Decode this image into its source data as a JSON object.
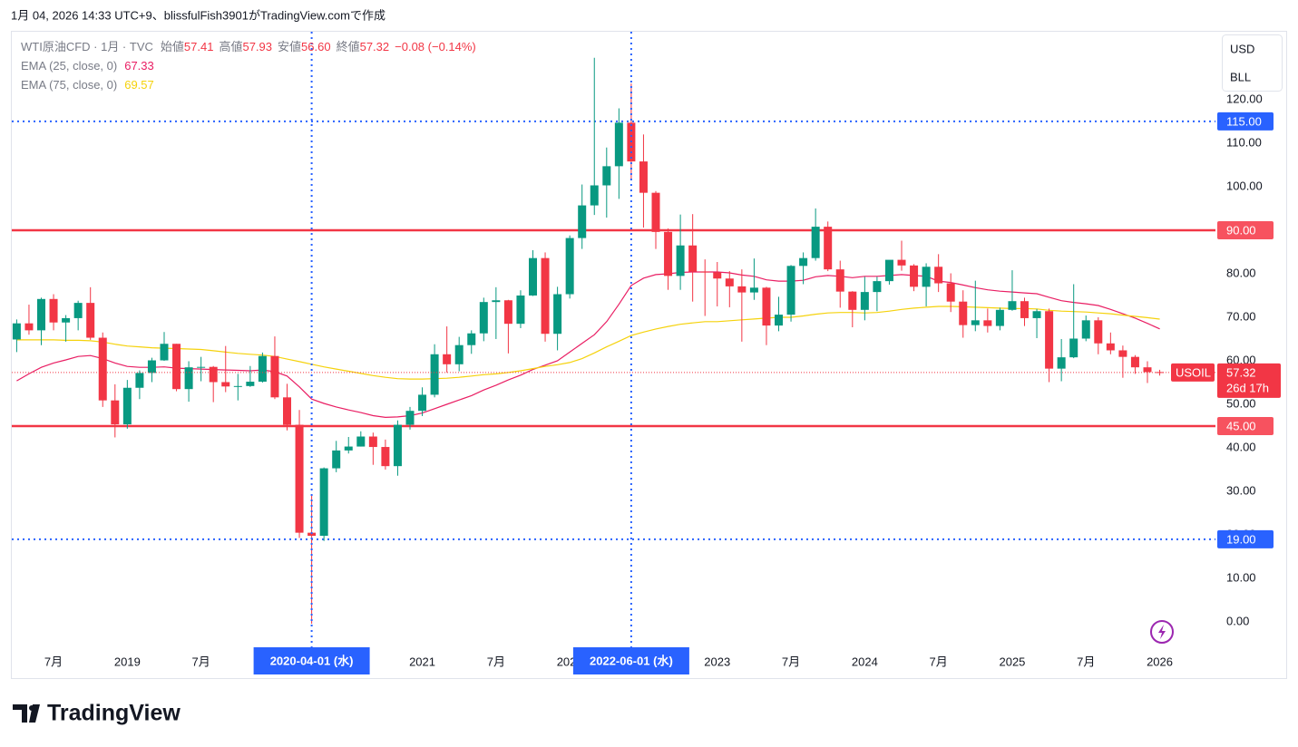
{
  "header": {
    "credit": "1月 04, 2026 14:33 UTC+9、blissfulFish3901がTradingView.comで作成"
  },
  "logo": {
    "text": "TradingView"
  },
  "chart_data": {
    "type": "candlestick",
    "legend": {
      "symbol": "WTI原油CFD · 1月 · TVC",
      "items": [
        {
          "name": "始値",
          "value": "57.41"
        },
        {
          "name": "高値",
          "value": "57.93"
        },
        {
          "name": "安値",
          "value": "56.60"
        },
        {
          "name": "終値",
          "value": "57.32"
        }
      ],
      "change": "−0.08 (−0.14%)"
    },
    "currency": [
      "USD",
      "BLL"
    ],
    "up_color": "#089981",
    "down_color": "#f23645",
    "categories": [
      null,
      null,
      null,
      "7月",
      null,
      null,
      null,
      null,
      null,
      "2019",
      null,
      null,
      null,
      null,
      null,
      "7月",
      null,
      null,
      null,
      null,
      null,
      null,
      null,
      null,
      null,
      null,
      null,
      null,
      null,
      null,
      null,
      null,
      null,
      "2021",
      null,
      null,
      null,
      null,
      null,
      "7月",
      null,
      null,
      null,
      null,
      null,
      "2022",
      null,
      null,
      null,
      null,
      null,
      null,
      null,
      null,
      null,
      null,
      null,
      "2023",
      null,
      null,
      null,
      null,
      null,
      "7月",
      null,
      null,
      null,
      null,
      null,
      "2024",
      null,
      null,
      null,
      null,
      null,
      "7月",
      null,
      null,
      null,
      null,
      null,
      "2025",
      null,
      null,
      null,
      null,
      null,
      "7月",
      null,
      null,
      null,
      null,
      null,
      "2026"
    ],
    "open": [
      64.9,
      68.6,
      67.0,
      74.2,
      68.8,
      69.8,
      73.3,
      65.3,
      50.9,
      45.4,
      53.8,
      57.2,
      60.1,
      63.9,
      53.5,
      58.5,
      58.6,
      55.1,
      54.1,
      54.2,
      55.2,
      61.1,
      51.6,
      45.3,
      20.5,
      19.8,
      35.3,
      39.4,
      40.3,
      42.6,
      40.2,
      35.8,
      45.3,
      48.5,
      52.2,
      61.5,
      59.2,
      63.6,
      66.3,
      73.5,
      73.9,
      68.5,
      75.0,
      83.6,
      66.2,
      75.3,
      88.2,
      95.7,
      100.3,
      104.7,
      114.7,
      105.8,
      98.6,
      89.6,
      79.5,
      86.5,
      80.5,
      80.3,
      78.9,
      77.1,
      75.7,
      76.8,
      68.1,
      70.6,
      81.8,
      83.6,
      90.8,
      81.0,
      75.9,
      71.7,
      75.8,
      78.3,
      83.2,
      81.9,
      77.0,
      81.6,
      77.8,
      73.6,
      68.2,
      69.3,
      68.0,
      71.7,
      73.7,
      69.8,
      71.4,
      58.2,
      60.8,
      65.1,
      69.3,
      64.0,
      62.4,
      60.9,
      58.5,
      57.41
    ],
    "high": [
      69.5,
      72.9,
      74.5,
      75.3,
      70.5,
      73.8,
      76.9,
      66.5,
      54.6,
      55.6,
      57.8,
      60.7,
      66.6,
      63.9,
      59.9,
      60.9,
      58.8,
      63.4,
      57.0,
      58.8,
      61.9,
      65.6,
      54.7,
      48.7,
      29.1,
      35.5,
      41.6,
      42.5,
      43.8,
      43.5,
      41.9,
      46.3,
      49.4,
      53.9,
      63.8,
      67.9,
      65.5,
      67.0,
      74.5,
      76.9,
      74.0,
      76.2,
      85.4,
      84.9,
      77.0,
      88.8,
      100.5,
      129.6,
      109.0,
      118.0,
      123.7,
      112.0,
      99.0,
      90.4,
      93.6,
      93.7,
      83.3,
      82.7,
      80.6,
      81.0,
      83.5,
      77.0,
      74.7,
      82.0,
      84.9,
      95.0,
      92.0,
      83.0,
      76.0,
      79.3,
      79.3,
      83.1,
      87.6,
      82.2,
      82.4,
      84.5,
      80.1,
      76.2,
      78.4,
      72.0,
      72.2,
      80.8,
      74.5,
      71.9,
      72.0,
      65.0,
      77.6,
      70.4,
      70.0,
      66.5,
      63.5,
      61.3,
      59.9,
      57.93
    ],
    "low": [
      62.0,
      66.0,
      63.6,
      67.0,
      64.4,
      67.0,
      64.8,
      49.4,
      42.4,
      44.4,
      51.2,
      55.1,
      60.0,
      53.0,
      50.6,
      55.3,
      50.5,
      52.8,
      50.9,
      54.0,
      55.0,
      51.2,
      44.0,
      19.3,
      -0.4,
      18.6,
      34.4,
      38.7,
      40.3,
      36.1,
      35.0,
      33.6,
      44.2,
      47.3,
      51.6,
      57.3,
      57.6,
      61.6,
      64.5,
      65.0,
      61.7,
      67.5,
      74.9,
      64.4,
      62.4,
      74.3,
      85.7,
      93.5,
      92.9,
      97.2,
      101.5,
      90.6,
      85.7,
      76.3,
      76.3,
      73.6,
      70.3,
      72.5,
      72.3,
      64.4,
      74.0,
      63.6,
      66.8,
      69.0,
      77.6,
      83.0,
      80.6,
      72.2,
      67.7,
      69.3,
      71.4,
      77.5,
      80.7,
      76.0,
      72.5,
      75.8,
      71.2,
      65.3,
      66.8,
      66.5,
      67.0,
      71.5,
      68.0,
      65.2,
      55.1,
      55.3,
      60.6,
      64.5,
      61.5,
      61.5,
      56.1,
      57.0,
      54.9,
      56.6
    ],
    "close": [
      68.6,
      67.0,
      74.2,
      68.8,
      69.8,
      73.3,
      65.3,
      50.9,
      45.4,
      53.8,
      57.2,
      60.1,
      63.9,
      53.5,
      58.5,
      58.6,
      55.1,
      54.1,
      54.2,
      55.2,
      61.1,
      51.6,
      45.3,
      20.5,
      19.8,
      35.3,
      39.4,
      40.3,
      42.6,
      40.2,
      35.8,
      45.3,
      48.5,
      52.2,
      61.5,
      59.2,
      63.6,
      66.3,
      73.5,
      73.9,
      68.5,
      75.0,
      83.6,
      66.2,
      75.3,
      88.2,
      95.7,
      100.3,
      104.7,
      114.7,
      105.8,
      98.6,
      89.6,
      79.5,
      86.5,
      80.5,
      80.3,
      78.9,
      77.1,
      75.7,
      76.8,
      68.1,
      70.6,
      81.8,
      83.6,
      90.8,
      81.0,
      75.9,
      71.7,
      75.8,
      78.3,
      83.2,
      81.9,
      77.0,
      81.6,
      77.8,
      73.6,
      68.2,
      69.3,
      68.0,
      71.7,
      73.7,
      69.8,
      71.4,
      58.2,
      60.8,
      65.1,
      69.3,
      64.0,
      62.4,
      60.9,
      58.5,
      57.4,
      57.32
    ],
    "indicators": [
      {
        "name": "EMA (25, close, 0)",
        "value_label": "67.33",
        "color": "#e91e63",
        "values": [
          55.4,
          57,
          58.5,
          59.5,
          60.2,
          61,
          61.2,
          60.5,
          59.5,
          58.7,
          58.5,
          58.5,
          58.6,
          58.3,
          58.2,
          58.1,
          58,
          57.9,
          57.8,
          57.7,
          57.9,
          57.5,
          56.5,
          54,
          51.2,
          50.2,
          49.4,
          48.7,
          48.1,
          47.4,
          47,
          47.1,
          47.4,
          48,
          49,
          50,
          51,
          52,
          53.3,
          54.4,
          55.6,
          56.7,
          58,
          59,
          60,
          62,
          64,
          66,
          69,
          73,
          77.3,
          79,
          79.8,
          80,
          80.3,
          80.4,
          80.4,
          80.4,
          80.2,
          79.7,
          79.4,
          78.6,
          78.3,
          78.3,
          78.5,
          79.3,
          79.6,
          79.4,
          79.1,
          79.4,
          79.4,
          79.6,
          79.8,
          79.6,
          79.4,
          78.3,
          78,
          77.4,
          76.8,
          76.3,
          76,
          75.8,
          75.6,
          75.4,
          74.6,
          73.8,
          73.4,
          73.1,
          72.7,
          71.8,
          70.8,
          69.8,
          68.6,
          67.33
        ]
      },
      {
        "name": "EMA (75, close, 0)",
        "value_label": "69.57",
        "color": "#f5d20c",
        "values": [
          64.8,
          64.8,
          64.8,
          64.8,
          64.7,
          64.7,
          64.6,
          64.3,
          63.8,
          63.4,
          63.2,
          63,
          62.9,
          62.8,
          62.7,
          62.6,
          62.3,
          62,
          61.7,
          61.5,
          61.3,
          61,
          60.4,
          59.8,
          59.2,
          58.6,
          58.1,
          57.6,
          57.1,
          56.6,
          56.2,
          55.9,
          55.8,
          55.8,
          55.9,
          56,
          56.2,
          56.5,
          56.8,
          57,
          57.3,
          57.7,
          58.2,
          58.7,
          59.1,
          59.6,
          60.5,
          61.8,
          63.2,
          64.5,
          65.8,
          66.6,
          67.3,
          67.9,
          68.4,
          68.7,
          69,
          69,
          69.2,
          69.4,
          69.6,
          69.8,
          70,
          70,
          70.3,
          70.7,
          71,
          71.1,
          71.1,
          71,
          71.1,
          71.4,
          71.8,
          72.1,
          72.3,
          72.5,
          72.5,
          72.4,
          72.3,
          72.2,
          72.1,
          72,
          72,
          71.9,
          71.6,
          71.4,
          71.3,
          71.2,
          71,
          70.8,
          70.5,
          70.2,
          69.9,
          69.57
        ]
      }
    ],
    "ylim": [
      -12.9,
      135.6
    ],
    "yticks": [
      {
        "value": 0,
        "label": "0.00"
      },
      {
        "value": 10,
        "label": "10.00"
      },
      {
        "value": 20,
        "label": "20.00"
      },
      {
        "value": 30,
        "label": "30.00"
      },
      {
        "value": 40,
        "label": "40.00"
      },
      {
        "value": 50,
        "label": "50.00"
      },
      {
        "value": 60,
        "label": "60.00"
      },
      {
        "value": 70,
        "label": "70.00"
      },
      {
        "value": 80,
        "label": "80.00"
      },
      {
        "value": 90,
        "label": "90.00"
      },
      {
        "value": 100,
        "label": "100.00"
      },
      {
        "value": 110,
        "label": "110.00"
      },
      {
        "value": 120,
        "label": "120.00"
      }
    ],
    "hlines": [
      {
        "value": 115,
        "label": "115.00",
        "color": "#2962ff",
        "style": "dotted"
      },
      {
        "value": 90,
        "label": "90.00",
        "color": "#f23645",
        "style": "solid"
      },
      {
        "value": 45,
        "label": "45.00",
        "color": "#f23645",
        "style": "solid"
      },
      {
        "value": 19,
        "label": "19.00",
        "color": "#2962ff",
        "style": "dotted"
      }
    ],
    "vlines": [
      {
        "x": 24,
        "label": "2020-04-01 (水)"
      },
      {
        "x": 50,
        "label": "2022-06-01 (水)"
      }
    ],
    "last_price": {
      "symbol": "USOIL",
      "value": 57.32,
      "label": "57.32",
      "countdown": "26d 17h"
    }
  }
}
